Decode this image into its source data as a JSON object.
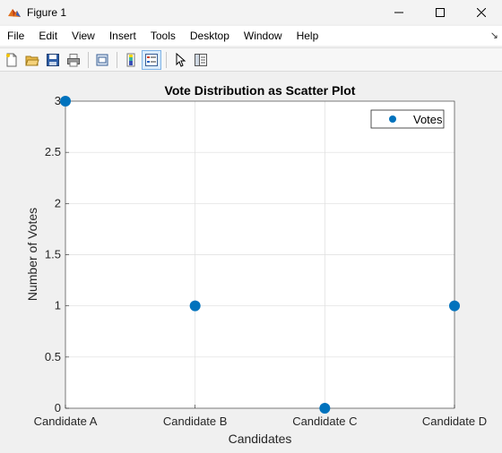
{
  "window": {
    "title": "Figure 1",
    "icons": [
      "matlab-figure-icon",
      "minimize-icon",
      "maximize-icon",
      "close-icon"
    ]
  },
  "menu": {
    "items": [
      "File",
      "Edit",
      "View",
      "Insert",
      "Tools",
      "Desktop",
      "Window",
      "Help"
    ],
    "dock_icon": "dock-arrow-icon"
  },
  "toolbar": {
    "buttons": [
      "new-figure-icon",
      "open-file-icon",
      "save-icon",
      "print-icon",
      "link-plot-icon",
      "colorbar-icon",
      "legend-icon",
      "edit-plot-icon",
      "property-inspector-icon"
    ]
  },
  "colors": {
    "marker": "#0072BD",
    "axes_background": "#ffffff",
    "grid": "#dedede"
  },
  "chart_data": {
    "type": "scatter",
    "title": "Vote Distribution as Scatter Plot",
    "xlabel": "Candidates",
    "ylabel": "Number of Votes",
    "categories": [
      "Candidate A",
      "Candidate B",
      "Candidate C",
      "Candidate D"
    ],
    "series": [
      {
        "name": "Votes",
        "values": [
          3,
          1,
          0,
          1
        ],
        "color": "#0072BD"
      }
    ],
    "ylim": [
      0,
      3
    ],
    "yticks": [
      "0",
      "0.5",
      "1",
      "1.5",
      "2",
      "2.5",
      "3"
    ],
    "grid": true,
    "legend": "top-right"
  }
}
